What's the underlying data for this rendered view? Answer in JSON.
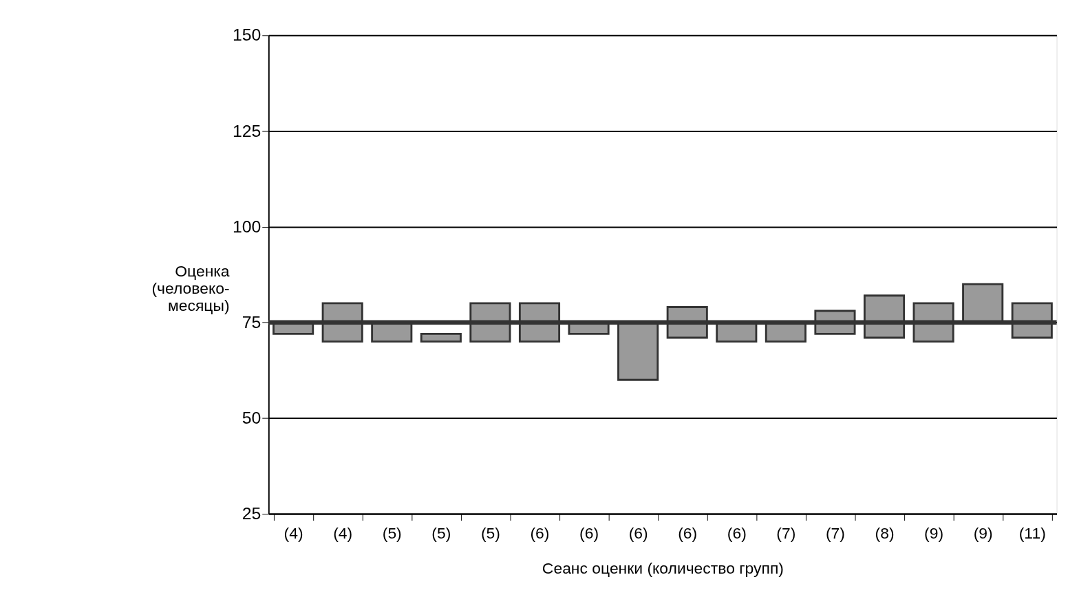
{
  "chart_data": {
    "type": "bar",
    "xlabel": "Сеанс оценки (количество групп)",
    "ylabel": "Оценка\n(человеко-\nмесяцы)",
    "categories": [
      "(4)",
      "(4)",
      "(5)",
      "(5)",
      "(5)",
      "(6)",
      "(6)",
      "(6)",
      "(6)",
      "(6)",
      "(7)",
      "(7)",
      "(8)",
      "(9)",
      "(9)",
      "(11)"
    ],
    "base": [
      72,
      70,
      70,
      70,
      70,
      70,
      72,
      60,
      71,
      70,
      70,
      72,
      71,
      70,
      75,
      71
    ],
    "values": [
      3,
      10,
      5,
      2,
      10,
      10,
      3,
      15,
      8,
      5,
      5,
      6,
      11,
      10,
      10,
      9
    ],
    "color": "#9a9a9a",
    "ylim": [
      25,
      150
    ],
    "yticks": [
      25,
      50,
      75,
      100,
      125,
      150
    ],
    "grid": "y",
    "ref_lines": [
      {
        "axis": "y",
        "value": 75,
        "color": "#333333"
      }
    ]
  }
}
